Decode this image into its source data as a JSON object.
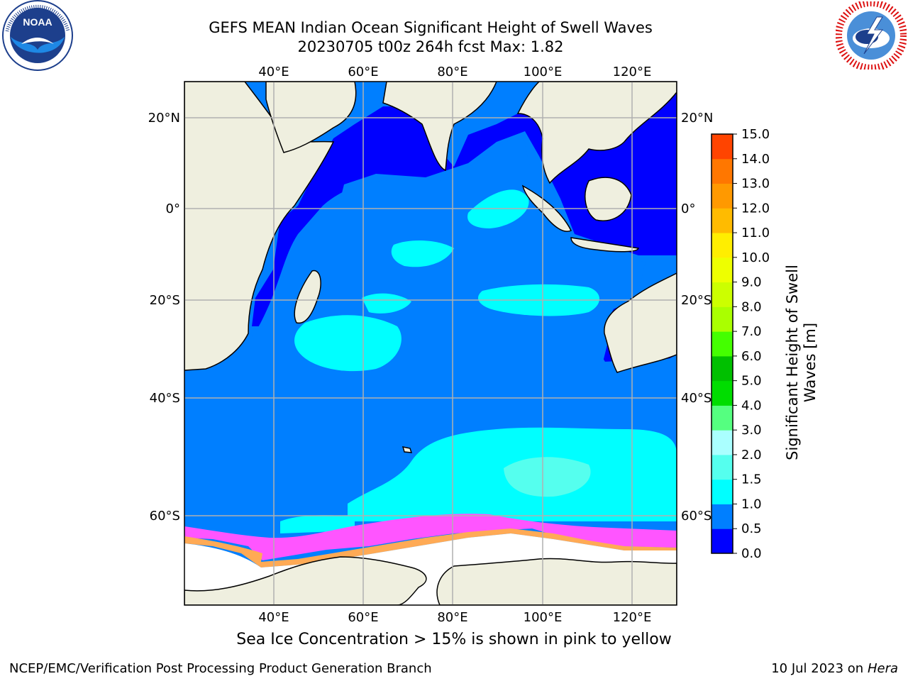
{
  "title_line1": "GEFS MEAN Indian Ocean Significant Height of Swell Waves",
  "title_line2": "20230705 t00z 264h fcst   Max: 1.82",
  "logos": {
    "left": "NOAA",
    "right": "National Weather Service"
  },
  "map": {
    "lon_labels": [
      "40°E",
      "60°E",
      "80°E",
      "100°E",
      "120°E"
    ],
    "lat_labels": [
      "20°N",
      "0°",
      "20°S",
      "40°S",
      "60°S"
    ],
    "lon_range": [
      20,
      130
    ],
    "lat_range": [
      -72,
      28
    ],
    "colors": {
      "land": "#efefdf",
      "ice": "#ffffff",
      "wave_0_0.5": "#0000ff",
      "wave_0.5_1.0": "#007fff",
      "wave_1.0_1.5": "#00ffff",
      "wave_1.5_2.0": "#55ffee",
      "ice_edge_pink": "#ff55ff",
      "ice_edge_orange": "#ffaa55",
      "grid": "#b0b0b0"
    }
  },
  "colorbar": {
    "label_line1": "Significant Height of Swell",
    "label_line2": "Waves [m]",
    "ticks": [
      "0.0",
      "0.5",
      "1.0",
      "1.5",
      "2.0",
      "3.0",
      "4.0",
      "5.0",
      "6.0",
      "7.0",
      "8.0",
      "9.0",
      "10.0",
      "11.0",
      "12.0",
      "13.0",
      "14.0",
      "15.0"
    ],
    "colors": [
      "#0000ff",
      "#007fff",
      "#00ffff",
      "#55ffee",
      "#aaffff",
      "#55ff80",
      "#00dd00",
      "#00c000",
      "#44ff00",
      "#aaff00",
      "#ccff00",
      "#eeff00",
      "#ffee00",
      "#ffbb00",
      "#ff9900",
      "#ff7700",
      "#ff4400",
      "#ff0000"
    ]
  },
  "caption": "Sea Ice Concentration > 15% is shown in pink to yellow",
  "footer_left": "NCEP/EMC/Verification Post Processing Product Generation Branch",
  "footer_right_date": "10 Jul 2023 on ",
  "footer_right_host": "Hera"
}
